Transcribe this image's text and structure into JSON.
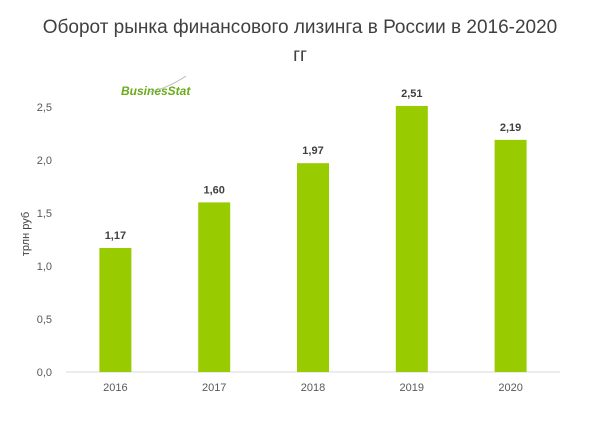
{
  "chart_data": {
    "type": "bar",
    "title": "Оборот рынка финансового лизинга в России в 2016-2020 гг",
    "ylabel": "трлн руб",
    "xlabel": "",
    "categories": [
      "2016",
      "2017",
      "2018",
      "2019",
      "2020"
    ],
    "values": [
      1.17,
      1.6,
      1.97,
      2.51,
      2.19
    ],
    "value_labels": [
      "1,17",
      "1,60",
      "1,97",
      "2,51",
      "2,19"
    ],
    "ylim": [
      0,
      2.5
    ],
    "yticks": [
      0,
      0.5,
      1.0,
      1.5,
      2.0,
      2.5
    ],
    "ytick_labels": [
      "0,0",
      "0,5",
      "1,0",
      "1,5",
      "2,0",
      "2,5"
    ],
    "grid": false,
    "bar_color": "#99cc00"
  },
  "logo_text": "BusinesStat"
}
